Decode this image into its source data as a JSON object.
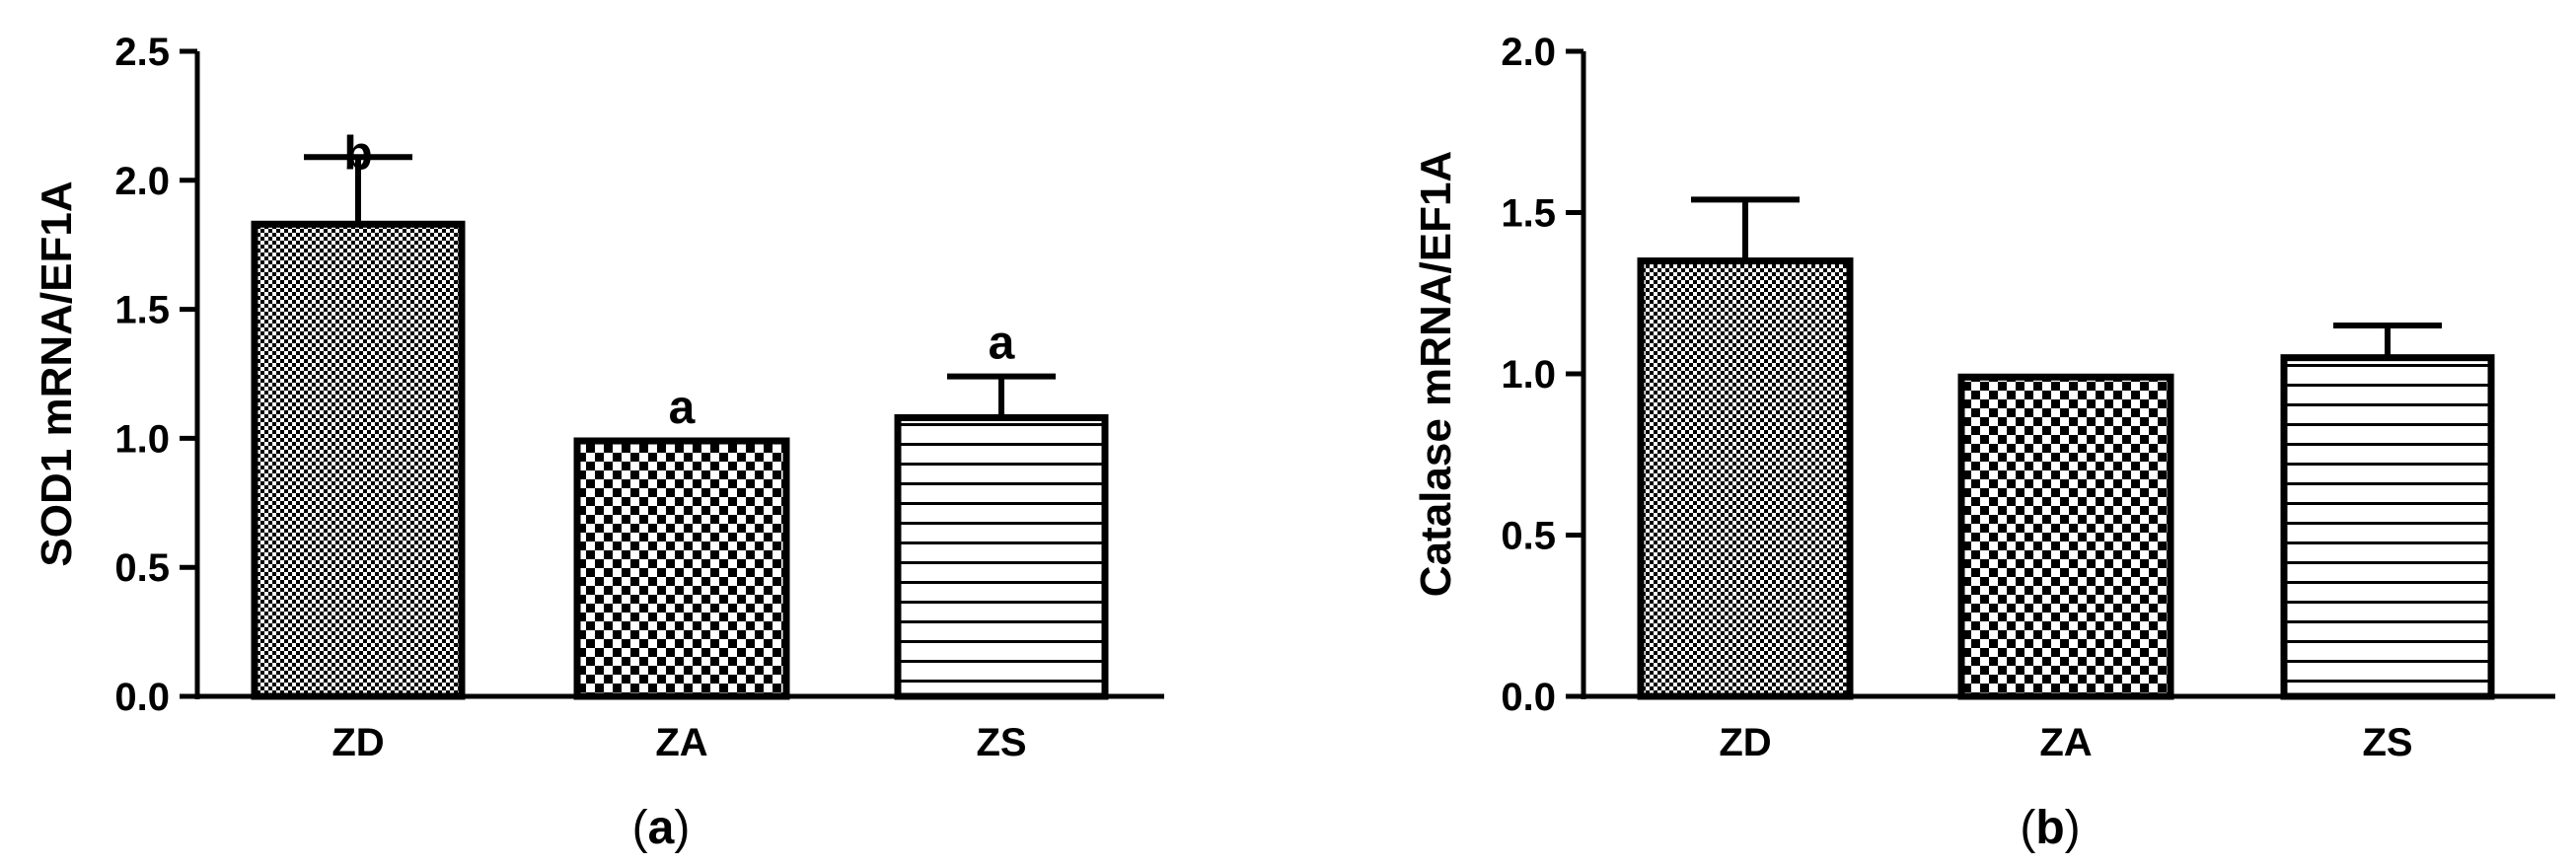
{
  "chart_data": [
    {
      "type": "bar",
      "panel_label": "a",
      "categories": [
        "ZD",
        "ZA",
        "ZS"
      ],
      "values": [
        1.83,
        0.99,
        1.08
      ],
      "errors": [
        0.26,
        0.0,
        0.16
      ],
      "significance": [
        "b",
        "a",
        "a"
      ],
      "ylabel": "SOD1 mRNA/EF1A",
      "ylim": [
        0,
        2.5
      ],
      "yticks": [
        "0.0",
        "0.5",
        "1.0",
        "1.5",
        "2.0",
        "2.5"
      ],
      "patterns": [
        "fine-check",
        "coarse-check",
        "horizontal-lines"
      ]
    },
    {
      "type": "bar",
      "panel_label": "b",
      "categories": [
        "ZD",
        "ZA",
        "ZS"
      ],
      "values": [
        1.35,
        0.99,
        1.05
      ],
      "errors": [
        0.19,
        0.0,
        0.1
      ],
      "significance": [
        "",
        "",
        ""
      ],
      "ylabel": "Catalase mRNA/EF1A",
      "ylim": [
        0,
        2.0
      ],
      "yticks": [
        "0.0",
        "0.5",
        "1.0",
        "1.5",
        "2.0"
      ],
      "patterns": [
        "fine-check",
        "coarse-check",
        "horizontal-lines"
      ]
    }
  ]
}
